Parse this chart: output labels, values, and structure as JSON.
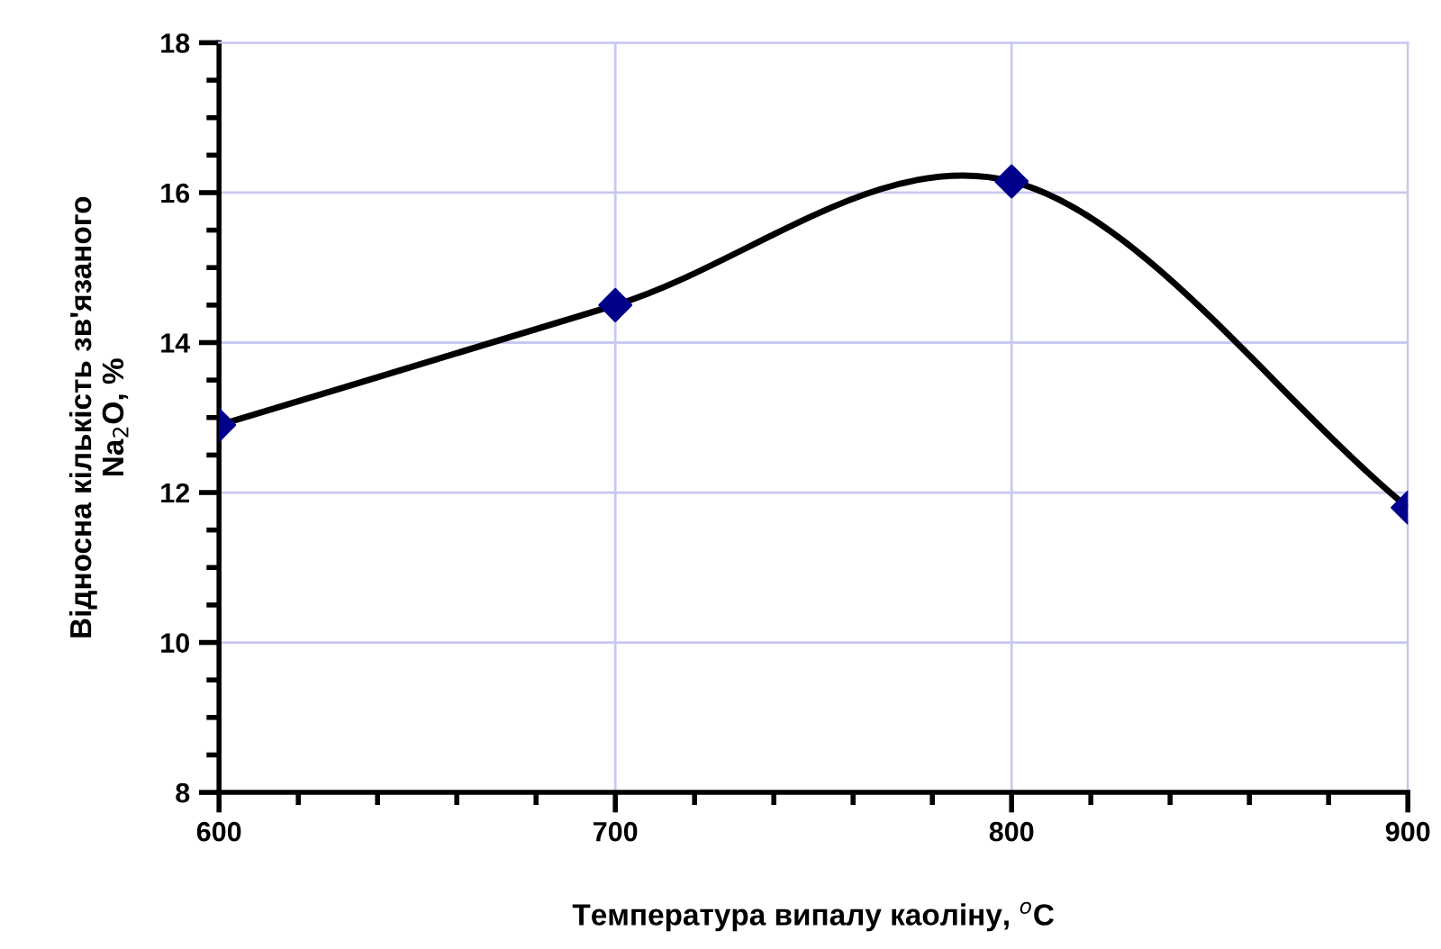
{
  "chart_data": {
    "type": "line",
    "xlabel": "Температура випалу каоліну, $^{o}$C",
    "ylabel": "Відносна кількість зв'язаного\nNa$_{2}$O, %",
    "x": [
      600,
      700,
      800,
      900
    ],
    "series": [
      {
        "color": "#000000",
        "colors": [
          "#00008b",
          "#00008b",
          "#00008b",
          "#00008b"
        ],
        "values": [
          12.9,
          14.5,
          16.15,
          11.8
        ]
      }
    ],
    "marker": "diamond",
    "line_style": "solid",
    "xlim": [
      600,
      900
    ],
    "xticks": [
      600,
      700,
      800,
      900
    ],
    "ylim": [
      8,
      18
    ],
    "yticks": [
      8,
      10,
      12,
      14,
      16,
      18
    ],
    "grid": true,
    "legend": false
  }
}
